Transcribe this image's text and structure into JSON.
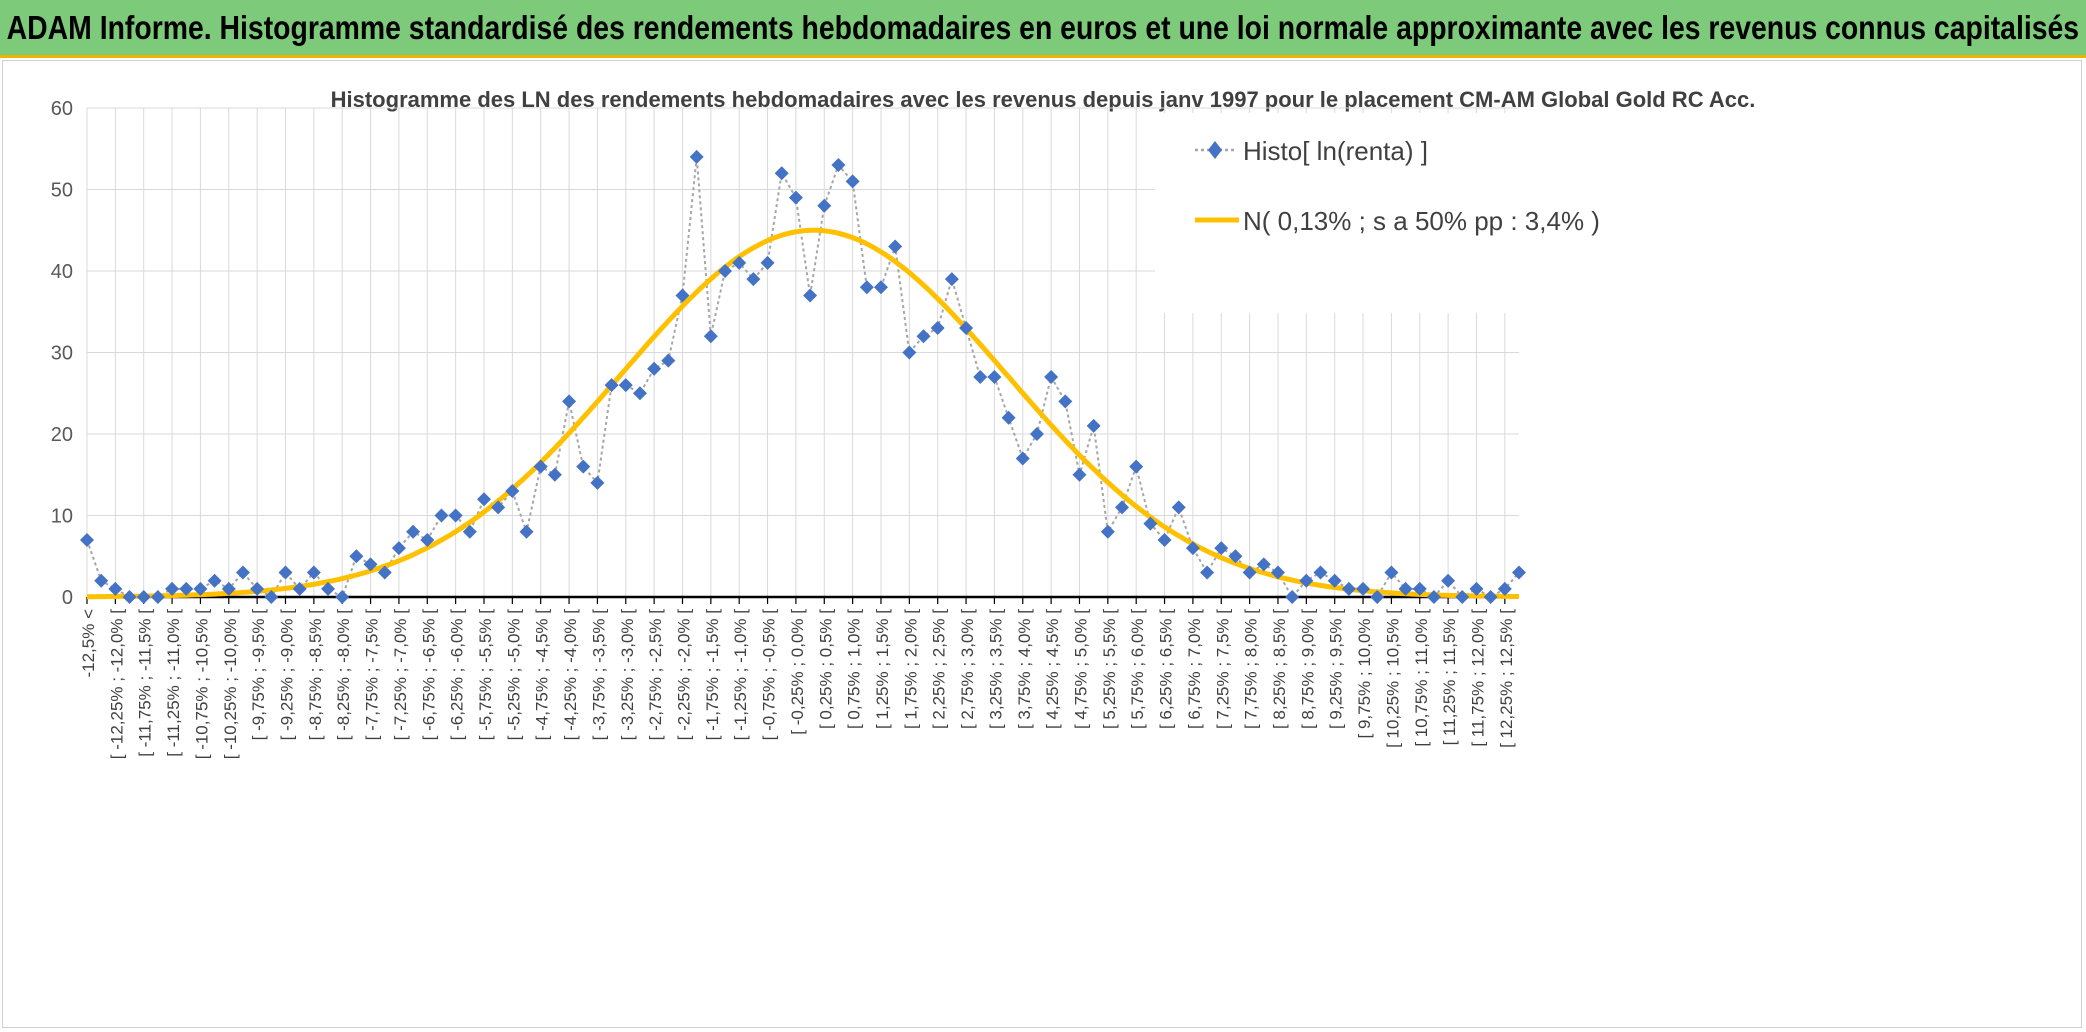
{
  "header": {
    "title": "ADAM Informe. Histogramme standardisé des rendements hebdomadaires en euros et une loi normale approximante avec les revenus connus capitalisés"
  },
  "colors": {
    "header_bg": "#7dcb7a",
    "accent": "#f0b400",
    "histo": "#4472c4",
    "normal": "#ffc000"
  },
  "chart_data": {
    "type": "line",
    "title": "Histogramme des LN des rendements hebdomadaires avec les revenus depuis janv 1997 pour le placement CM-AM Global Gold RC Acc.",
    "ylim": [
      0,
      60
    ],
    "yticks": [
      0,
      10,
      20,
      30,
      40,
      50,
      60
    ],
    "grid": true,
    "legend_position": "top-right",
    "x_tick_labels": [
      "-12,5% <",
      "[ -12,25% ; -12,0% [",
      "[ -11,75% ; -11,5% [",
      "[ -11,25% ; -11,0% [",
      "[ -10,75% ; -10,5% [",
      "[ -10,25% ; -10,0% [",
      "[ -9,75% ; -9,5% [",
      "[ -9,25% ; -9,0% [",
      "[ -8,75% ; -8,5% [",
      "[ -8,25% ; -8,0% [",
      "[ -7,75% ; -7,5% [",
      "[ -7,25% ; -7,0% [",
      "[ -6,75% ; -6,5% [",
      "[ -6,25% ; -6,0% [",
      "[ -5,75% ; -5,5% [",
      "[ -5,25% ; -5,0% [",
      "[ -4,75% ; -4,5% [",
      "[ -4,25% ; -4,0% [",
      "[ -3,75% ; -3,5% [",
      "[ -3,25% ; -3,0% [",
      "[ -2,75% ; -2,5% [",
      "[ -2,25% ; -2,0% [",
      "[ -1,75% ; -1,5% [",
      "[ -1,25% ; -1,0% [",
      "[ -0,75% ; -0,5% [",
      "[ -0,25% ; 0,0% [",
      "[ 0,25% ; 0,5% [",
      "[ 0,75% ; 1,0% [",
      "[ 1,25% ; 1,5% [",
      "[ 1,75% ; 2,0% [",
      "[ 2,25% ; 2,5% [",
      "[ 2,75% ; 3,0% [",
      "[ 3,25% ; 3,5% [",
      "[ 3,75% ; 4,0% [",
      "[ 4,25% ; 4,5% [",
      "[ 4,75% ; 5,0% [",
      "[ 5,25% ; 5,5% [",
      "[ 5,75% ; 6,0% [",
      "[ 6,25% ; 6,5% [",
      "[ 6,75% ; 7,0% [",
      "[ 7,25% ; 7,5% [",
      "[ 7,75% ; 8,0% [",
      "[ 8,25% ; 8,5% [",
      "[ 8,75% ; 9,0% [",
      "[ 9,25% ; 9,5% [",
      "[ 9,75% ; 10,0% [",
      "[ 10,25% ; 10,5% [",
      "[ 10,75% ; 11,0% [",
      "[ 11,25% ; 11,5% [",
      "[ 11,75% ; 12,0% [",
      "[ 12,25% ; 12,5% ["
    ],
    "series": [
      {
        "name": "Histo[ ln(renta) ]",
        "kind": "markers",
        "values": [
          7,
          2,
          1,
          0,
          0,
          0,
          1,
          1,
          1,
          2,
          1,
          3,
          1,
          0,
          3,
          1,
          3,
          1,
          0,
          5,
          4,
          3,
          6,
          8,
          7,
          10,
          10,
          8,
          12,
          11,
          13,
          8,
          16,
          15,
          24,
          16,
          14,
          26,
          26,
          25,
          28,
          29,
          37,
          54,
          32,
          40,
          41,
          39,
          41,
          52,
          49,
          37,
          48,
          53,
          51,
          38,
          38,
          43,
          30,
          32,
          33,
          39,
          33,
          27,
          27,
          22,
          17,
          20,
          27,
          24,
          15,
          21,
          8,
          11,
          16,
          9,
          7,
          11,
          6,
          3,
          6,
          5,
          3,
          4,
          3,
          0,
          2,
          3,
          2,
          1,
          1,
          0,
          3,
          1,
          1,
          0,
          2,
          0,
          1,
          0,
          1,
          3
        ]
      },
      {
        "name": "N( 0,13% ; s a 50% pp : 3,4% )",
        "kind": "curve",
        "mean_index": 51.26,
        "sigma_bins": 13.6,
        "peak": 45
      }
    ]
  }
}
